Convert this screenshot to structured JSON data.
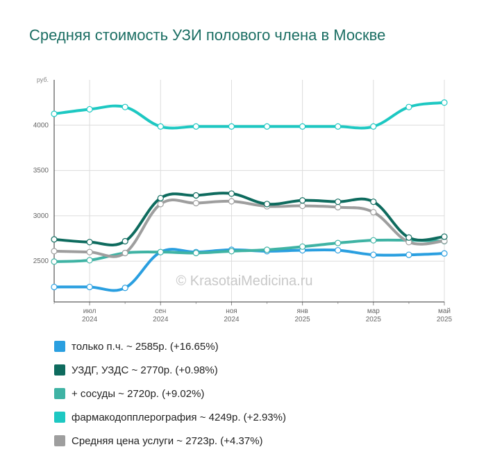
{
  "title": "Средняя стоимость УЗИ полового члена в Москве",
  "watermark": "© KrasotaiMedicina.ru",
  "chart_data": {
    "type": "line",
    "ylabel": "руб.",
    "ylim": [
      2050,
      4500
    ],
    "yticks": [
      2500,
      3000,
      3500,
      4000
    ],
    "ytick_labels": [
      "2500",
      "3000",
      "3500",
      "4000"
    ],
    "grid": true,
    "legend_position": "bottom",
    "x": [
      "2024-06",
      "2024-07",
      "2024-08",
      "2024-09",
      "2024-10",
      "2024-11",
      "2024-12",
      "2025-01",
      "2025-02",
      "2025-03",
      "2025-04",
      "2025-05"
    ],
    "xticks": [
      {
        "month": "2024-07",
        "line1": "июл",
        "line2": "2024"
      },
      {
        "month": "2024-09",
        "line1": "сен",
        "line2": "2024"
      },
      {
        "month": "2024-11",
        "line1": "ноя",
        "line2": "2024"
      },
      {
        "month": "2025-01",
        "line1": "янв",
        "line2": "2025"
      },
      {
        "month": "2025-03",
        "line1": "мар",
        "line2": "2025"
      },
      {
        "month": "2025-05",
        "line1": "май",
        "line2": "2025"
      }
    ],
    "series": [
      {
        "name": "только п.ч.",
        "color": "#2a9fe0",
        "legend": "только п.ч. ~ 2585р. (+16.65%)",
        "values": [
          2215,
          2215,
          2205,
          2600,
          2600,
          2625,
          2610,
          2620,
          2620,
          2570,
          2570,
          2585
        ]
      },
      {
        "name": "фармакодопплерография",
        "color": "#1dc8c2",
        "legend": "фармакодопплерография ~ 4249р. (+2.93%)",
        "values": [
          4125,
          4175,
          4200,
          3985,
          3985,
          3985,
          3985,
          3985,
          3985,
          3985,
          4200,
          4249
        ]
      },
      {
        "name": "+ сосуды",
        "color": "#3fb3a4",
        "legend": "+ сосуды ~ 2720р. (+9.02%)",
        "values": [
          2495,
          2510,
          2590,
          2600,
          2590,
          2610,
          2625,
          2660,
          2700,
          2730,
          2730,
          2720
        ]
      },
      {
        "name": "Средняя цена услуги",
        "color": "#9e9e9e",
        "legend": "Средняя цена услуги ~ 2723р. (+4.37%)",
        "values": [
          2610,
          2600,
          2590,
          3130,
          3140,
          3160,
          3105,
          3110,
          3095,
          3040,
          2710,
          2723
        ]
      },
      {
        "name": "УЗДГ, УЗДС",
        "color": "#0e6b5e",
        "legend": "УЗДГ, УЗДС ~ 2770р. (+0.98%)",
        "values": [
          2740,
          2710,
          2720,
          3195,
          3225,
          3245,
          3130,
          3170,
          3155,
          3155,
          2760,
          2770
        ]
      }
    ],
    "legend_order": [
      "только п.ч.",
      "УЗДГ, УЗДС",
      "+ сосуды",
      "фармакодопплерография",
      "Средняя цена услуги"
    ]
  }
}
